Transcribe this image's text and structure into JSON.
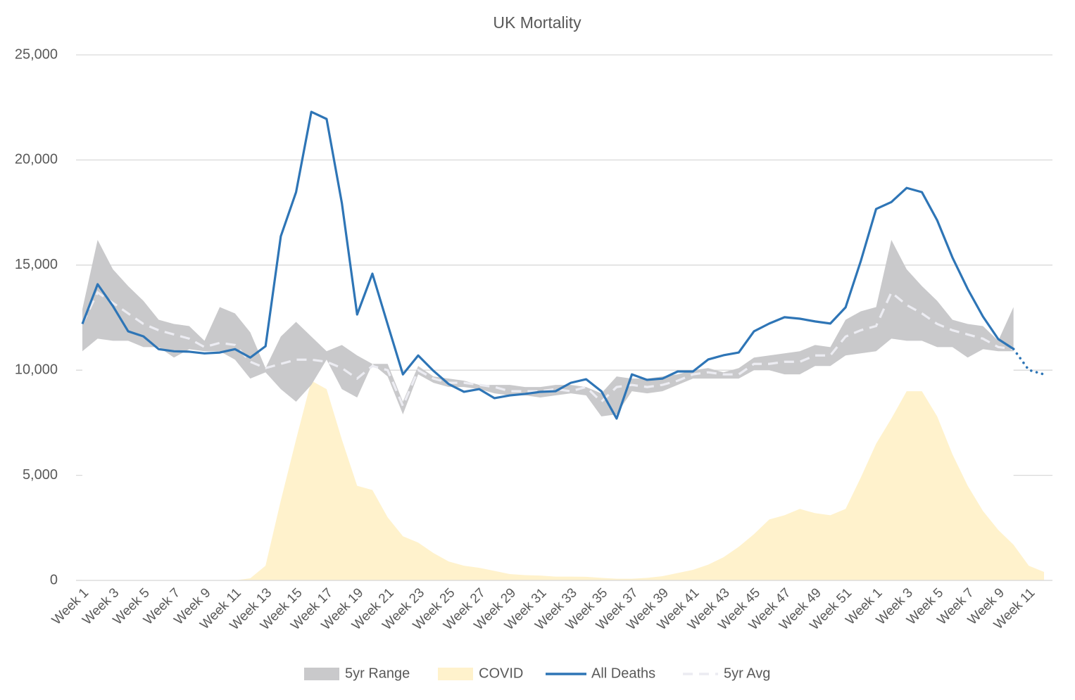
{
  "chart_data": {
    "type": "line",
    "title": "UK Mortality",
    "categories": [
      "Week 1",
      null,
      "Week 3",
      null,
      "Week 5",
      null,
      "Week 7",
      null,
      "Week 9",
      null,
      "Week 11",
      null,
      "Week 13",
      null,
      "Week 15",
      null,
      "Week 17",
      null,
      "Week 19",
      null,
      "Week 21",
      null,
      "Week 23",
      null,
      "Week 25",
      null,
      "Week 27",
      null,
      "Week 29",
      null,
      "Week 31",
      null,
      "Week 33",
      null,
      "Week 35",
      null,
      "Week 37",
      null,
      "Week 39",
      null,
      "Week 41",
      null,
      "Week 43",
      null,
      "Week 45",
      null,
      "Week 47",
      null,
      "Week 49",
      null,
      "Week 51",
      null,
      "Week 1",
      null,
      "Week 3",
      null,
      "Week 5",
      null,
      "Week 7",
      null,
      "Week 9",
      null,
      "Week 11",
      null
    ],
    "ylim": [
      0,
      25000
    ],
    "yticks": [
      0,
      {
        "value": 5000,
        "label": "5,000"
      },
      {
        "value": 10000,
        "label": "10,000"
      },
      {
        "value": 15000,
        "label": "15,000"
      },
      {
        "value": 20000,
        "label": "20,000"
      },
      {
        "value": 25000,
        "label": "25,000"
      }
    ],
    "grid": true,
    "legend": "bottom",
    "series": [
      {
        "name": "5yr Range",
        "kind": "range",
        "color": "#c9c9cb",
        "low": [
          10900,
          11500,
          11400,
          11400,
          11100,
          11100,
          10600,
          11000,
          10900,
          10900,
          10500,
          9600,
          9900,
          9100,
          8500,
          9300,
          10500,
          9100,
          8700,
          10300,
          9700,
          7900,
          9800,
          9400,
          9200,
          9200,
          9100,
          8900,
          8800,
          8800,
          8700,
          8800,
          8900,
          8800,
          7800,
          7900,
          9000,
          8900,
          9000,
          9300,
          9600,
          9600,
          9600,
          9600,
          10000,
          10000,
          9800,
          9800,
          10200,
          10200,
          10700,
          10800,
          10900,
          11500,
          11400,
          11400,
          11100,
          11100,
          10600,
          11000,
          10900,
          10900,
          null,
          null
        ],
        "high": [
          12900,
          16200,
          14800,
          14000,
          13300,
          12400,
          12200,
          12100,
          11400,
          13000,
          12700,
          11800,
          10100,
          11600,
          12300,
          11600,
          10900,
          11200,
          10700,
          10300,
          10300,
          8500,
          10200,
          9700,
          9600,
          9500,
          9300,
          9300,
          9300,
          9200,
          9200,
          9300,
          9300,
          9200,
          8900,
          9700,
          9600,
          9600,
          9700,
          9800,
          10000,
          10100,
          9900,
          10100,
          10600,
          10700,
          10800,
          10900,
          11200,
          11100,
          12400,
          12800,
          13000,
          16200,
          14800,
          14000,
          13300,
          12400,
          12200,
          12100,
          11400,
          13000,
          null,
          null
        ]
      },
      {
        "name": "COVID",
        "kind": "area",
        "color": "#fff2cc",
        "values": [
          0,
          0,
          0,
          0,
          0,
          0,
          0,
          0,
          0,
          0,
          0,
          100,
          700,
          3800,
          6700,
          9500,
          9100,
          6700,
          4500,
          4300,
          3000,
          2100,
          1800,
          1300,
          900,
          700,
          600,
          450,
          300,
          250,
          230,
          180,
          180,
          170,
          120,
          80,
          80,
          120,
          200,
          350,
          500,
          750,
          1100,
          1600,
          2200,
          2900,
          3100,
          3400,
          3200,
          3100,
          3400,
          4900,
          6500,
          7700,
          9000,
          9000,
          7800,
          6000,
          4500,
          3300,
          2400,
          1700,
          700,
          400
        ]
      },
      {
        "name": "All Deaths",
        "kind": "line",
        "color": "#2e75b6",
        "dotted_from": 61,
        "values": [
          12200,
          14090,
          13050,
          11850,
          11610,
          11000,
          10900,
          10880,
          10800,
          10840,
          11000,
          10600,
          11140,
          16370,
          18470,
          22290,
          21950,
          17950,
          12650,
          14590,
          12180,
          9800,
          10700,
          9970,
          9340,
          8970,
          9100,
          8670,
          8800,
          8870,
          8970,
          9000,
          9400,
          9570,
          9000,
          7700,
          9800,
          9540,
          9600,
          9940,
          9940,
          10510,
          10710,
          10840,
          11850,
          12220,
          12520,
          12450,
          12320,
          12220,
          12990,
          15200,
          17670,
          18000,
          18670,
          18470,
          17130,
          15360,
          13860,
          12550,
          11480,
          11010,
          10010,
          9800
        ]
      },
      {
        "name": "5yr Avg",
        "kind": "dashed",
        "color": "#ececf2",
        "values": [
          12200,
          13700,
          13200,
          12700,
          12200,
          11900,
          11700,
          11500,
          11100,
          11300,
          11200,
          10400,
          10100,
          10300,
          10500,
          10500,
          10400,
          10100,
          9600,
          10200,
          10000,
          8300,
          10000,
          9600,
          9400,
          9400,
          9300,
          9200,
          9000,
          9000,
          9000,
          9100,
          9000,
          9200,
          8500,
          9200,
          9300,
          9200,
          9300,
          9500,
          9800,
          9900,
          9800,
          9800,
          10300,
          10300,
          10400,
          10400,
          10700,
          10700,
          11600,
          11900,
          12100,
          13700,
          13100,
          12700,
          12200,
          11900,
          11700,
          11500,
          11100,
          11000,
          null,
          null
        ]
      }
    ]
  }
}
